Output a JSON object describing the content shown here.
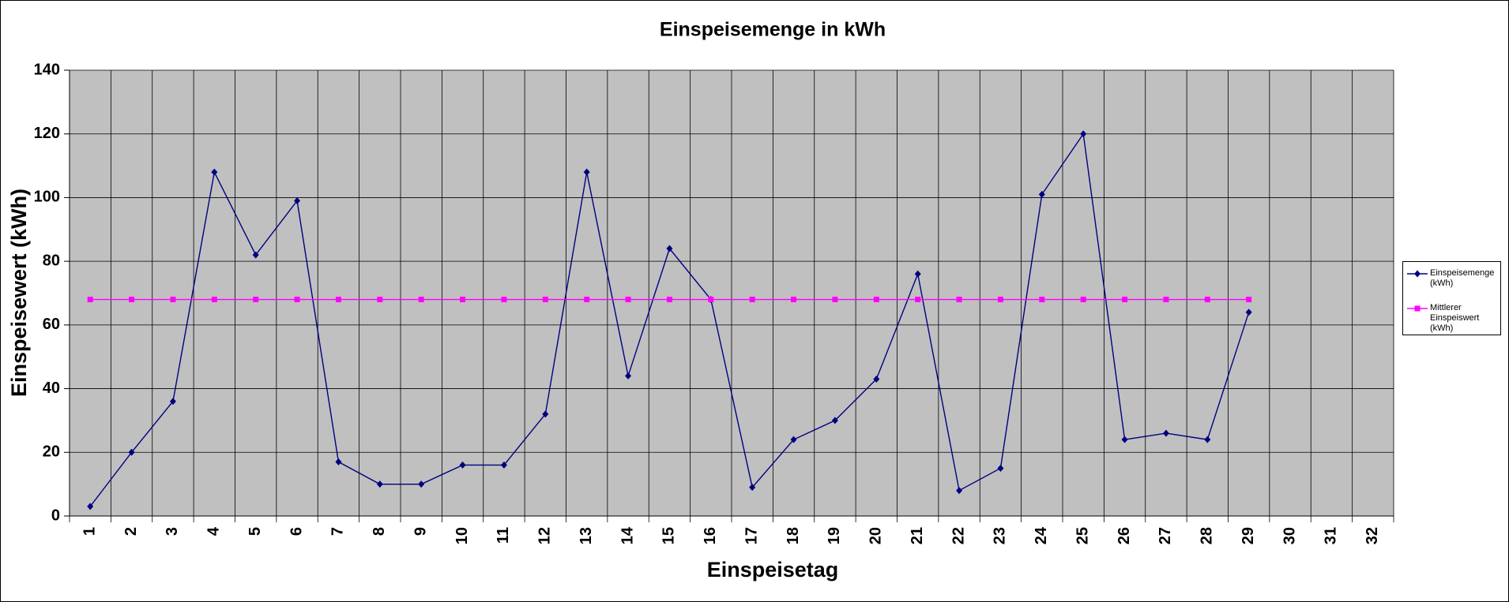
{
  "chart_data": {
    "type": "line",
    "title": "Einspeisemenge in kWh",
    "x_label": "Einspeisetag",
    "y_label": "Einspeisewert  (kWh)",
    "categories": [
      "1",
      "2",
      "3",
      "4",
      "5",
      "6",
      "7",
      "8",
      "9",
      "10",
      "11",
      "12",
      "13",
      "14",
      "15",
      "16",
      "17",
      "18",
      "19",
      "20",
      "21",
      "22",
      "23",
      "24",
      "25",
      "26",
      "27",
      "28",
      "29",
      "30",
      "31",
      "32"
    ],
    "series": [
      {
        "name": "Einspeisemenge (kWh)",
        "color": "#000080",
        "marker": "diamond",
        "values": [
          3,
          20,
          36,
          108,
          82,
          99,
          17,
          10,
          10,
          16,
          16,
          32,
          108,
          44,
          84,
          68,
          9,
          24,
          30,
          43,
          76,
          8,
          15,
          101,
          120,
          24,
          26,
          24,
          64,
          null,
          null,
          null
        ]
      },
      {
        "name": "Mittlerer Einspeiswert (kWh)",
        "color": "#ff00ff",
        "marker": "square",
        "values": [
          68,
          68,
          68,
          68,
          68,
          68,
          68,
          68,
          68,
          68,
          68,
          68,
          68,
          68,
          68,
          68,
          68,
          68,
          68,
          68,
          68,
          68,
          68,
          68,
          68,
          68,
          68,
          68,
          68,
          null,
          null,
          null
        ]
      }
    ],
    "ylim": [
      0,
      140
    ],
    "yticks": [
      0,
      20,
      40,
      60,
      80,
      100,
      120,
      140
    ],
    "grid": true,
    "plot_background": "#c0c0c0",
    "legend": "right"
  }
}
